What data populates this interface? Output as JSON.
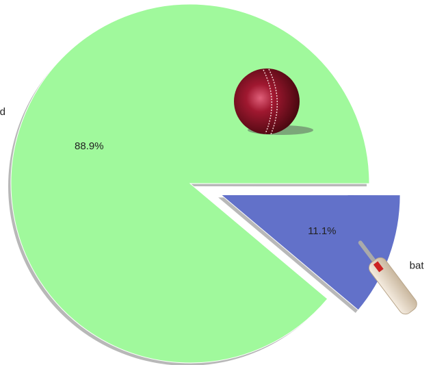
{
  "chart_data": {
    "type": "pie",
    "categories": [
      "d",
      "bat"
    ],
    "values": [
      88.9,
      11.1
    ],
    "value_labels": [
      "88.9%",
      "11.1%"
    ],
    "colors": [
      "#a0f99c",
      "#6271c9"
    ]
  }
}
